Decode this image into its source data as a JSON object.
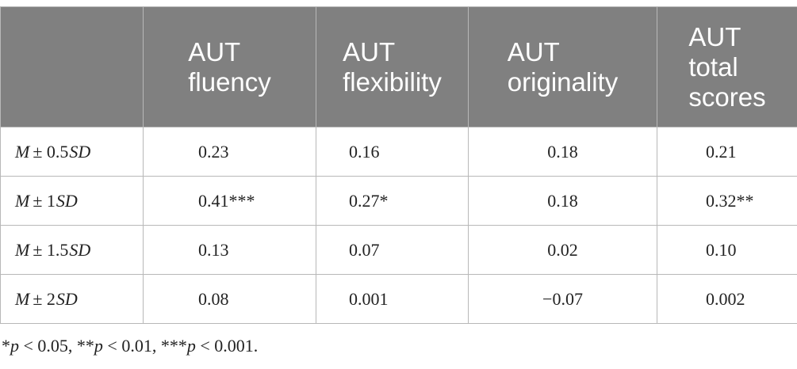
{
  "table": {
    "header": [
      [
        "AUT",
        "fluency"
      ],
      [
        "AUT",
        "flexibility"
      ],
      [
        "AUT",
        "originality"
      ],
      [
        "AUT",
        "total",
        "scores"
      ]
    ],
    "rows": [
      {
        "label": [
          "M",
          "± 0.5",
          "SD"
        ],
        "cells": [
          "0.23",
          "0.16",
          "0.18",
          "0.21"
        ]
      },
      {
        "label": [
          "M",
          "± 1",
          "SD"
        ],
        "cells": [
          "0.41***",
          "0.27*",
          "0.18",
          "0.32**"
        ]
      },
      {
        "label": [
          "M",
          "± 1.5",
          "SD"
        ],
        "cells": [
          "0.13",
          "0.07",
          "0.02",
          "0.10"
        ]
      },
      {
        "label": [
          "M",
          "± 2",
          "SD"
        ],
        "cells": [
          "0.08",
          "0.001",
          "−0.07",
          "0.002"
        ]
      }
    ],
    "footnote": [
      "*",
      "p",
      " < 0.05, **",
      "p",
      " < 0.01, ***",
      "p",
      " < 0.001."
    ]
  }
}
